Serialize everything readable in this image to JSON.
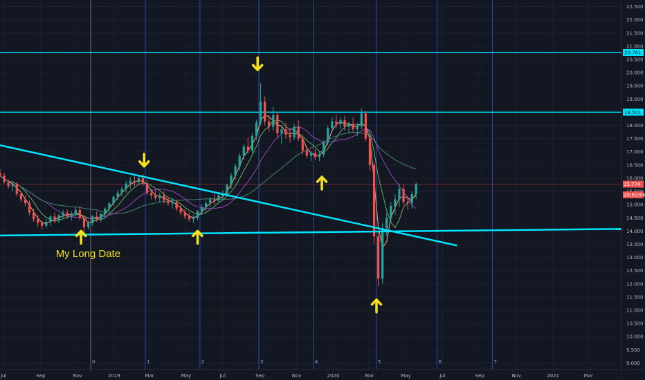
{
  "chart_data": {
    "type": "candlestick",
    "y_axis": {
      "range": [
        8.75,
        22.75
      ],
      "ticks": [
        "9.000",
        "9.500",
        "10.000",
        "10.500",
        "11.000",
        "11.500",
        "12.000",
        "12.500",
        "13.000",
        "13.500",
        "14.000",
        "14.500",
        "15.000",
        "15.500",
        "16.000",
        "16.500",
        "17.000",
        "17.500",
        "18.000",
        "18.500",
        "19.000",
        "19.500",
        "20.000",
        "20.500",
        "21.000",
        "21.500",
        "22.000",
        "22.500"
      ]
    },
    "x_axis": {
      "labels": [
        "Jul",
        "Sep",
        "Nov",
        "2019",
        "Mar",
        "May",
        "Jul",
        "Sep",
        "Nov",
        "2020",
        "Mar",
        "May",
        "Jul",
        "Sep",
        "Nov",
        "2021",
        "Mar"
      ],
      "label_dates": [
        "2018-07",
        "2018-09",
        "2018-11",
        "2019-01",
        "2019-03",
        "2019-05",
        "2019-07",
        "2019-09",
        "2019-11",
        "2020-01",
        "2020-03",
        "2020-05",
        "2020-07",
        "2020-09",
        "2020-11",
        "2021-01",
        "2021-03"
      ],
      "range": [
        "2018-06-25",
        "2021-04-25"
      ]
    },
    "cycle_markers": [
      {
        "label": "0",
        "date": "2018-11-23"
      },
      {
        "label": "1",
        "date": "2019-02-22"
      },
      {
        "label": "2",
        "date": "2019-05-24"
      },
      {
        "label": "3",
        "date": "2019-08-30"
      },
      {
        "label": "4",
        "date": "2019-11-29"
      },
      {
        "label": "5",
        "date": "2020-03-13"
      },
      {
        "label": "6",
        "date": "2020-06-22"
      },
      {
        "label": "7",
        "date": "2020-09-22"
      }
    ],
    "horizontal_levels": [
      {
        "value": 20.761,
        "label": "20.761",
        "color": "#00e5ff"
      },
      {
        "value": 18.501,
        "label": "18.501",
        "color": "#00e5ff"
      }
    ],
    "price_tags": [
      {
        "value": 15.774,
        "label": "15.774",
        "color": "#ef5350"
      },
      {
        "value": 15.37,
        "label": "20:50:54",
        "color": "#ef5350"
      }
    ],
    "trendlines": [
      {
        "from": {
          "date": "2018-06-25",
          "value": 17.25
        },
        "to": {
          "date": "2020-07-25",
          "value": 13.45
        },
        "color": "#00e5ff"
      },
      {
        "from": {
          "date": "2018-06-25",
          "value": 13.83
        },
        "to": {
          "date": "2021-04-25",
          "value": 14.08
        },
        "color": "#00e5ff"
      }
    ],
    "annotations": [
      {
        "text": "My Long Date",
        "date": "2018-09-26",
        "value": 13.02,
        "color": "#f7e21d"
      }
    ],
    "arrows": [
      {
        "date": "2018-11-07",
        "value": 14.0,
        "direction": "up"
      },
      {
        "date": "2019-02-20",
        "value": 16.45,
        "direction": "down"
      },
      {
        "date": "2019-05-20",
        "value": 14.0,
        "direction": "up"
      },
      {
        "date": "2019-08-28",
        "value": 20.1,
        "direction": "down"
      },
      {
        "date": "2019-12-13",
        "value": 16.05,
        "direction": "up"
      },
      {
        "date": "2020-03-13",
        "value": 11.4,
        "direction": "up"
      }
    ],
    "ohlc_weekly": [
      [
        "2018-06-25",
        16.2,
        16.35,
        16.05,
        16.1
      ],
      [
        "2018-07-02",
        16.1,
        16.2,
        15.8,
        15.85
      ],
      [
        "2018-07-09",
        15.85,
        15.95,
        15.6,
        15.7
      ],
      [
        "2018-07-16",
        15.7,
        15.9,
        15.5,
        15.8
      ],
      [
        "2018-07-23",
        15.8,
        15.85,
        15.3,
        15.4
      ],
      [
        "2018-07-30",
        15.4,
        15.5,
        15.1,
        15.2
      ],
      [
        "2018-08-06",
        15.2,
        15.35,
        14.95,
        15.05
      ],
      [
        "2018-08-13",
        15.05,
        15.15,
        14.6,
        14.7
      ],
      [
        "2018-08-20",
        14.7,
        14.85,
        14.35,
        14.45
      ],
      [
        "2018-08-27",
        14.45,
        14.6,
        14.15,
        14.3
      ],
      [
        "2018-09-03",
        14.3,
        14.4,
        14.05,
        14.2
      ],
      [
        "2018-09-10",
        14.2,
        14.45,
        14.1,
        14.35
      ],
      [
        "2018-09-17",
        14.35,
        14.6,
        14.2,
        14.55
      ],
      [
        "2018-09-24",
        14.55,
        14.7,
        14.3,
        14.4
      ],
      [
        "2018-10-01",
        14.4,
        14.65,
        14.3,
        14.6
      ],
      [
        "2018-10-08",
        14.6,
        14.8,
        14.45,
        14.7
      ],
      [
        "2018-10-15",
        14.7,
        14.8,
        14.45,
        14.55
      ],
      [
        "2018-10-22",
        14.55,
        14.75,
        14.4,
        14.65
      ],
      [
        "2018-10-29",
        14.65,
        14.9,
        14.55,
        14.8
      ],
      [
        "2018-11-05",
        14.8,
        14.95,
        14.4,
        14.5
      ],
      [
        "2018-11-12",
        14.5,
        14.6,
        13.95,
        14.15
      ],
      [
        "2018-11-19",
        14.15,
        14.4,
        14.05,
        14.3
      ],
      [
        "2018-11-26",
        14.3,
        14.6,
        14.2,
        14.55
      ],
      [
        "2018-12-03",
        14.55,
        14.75,
        14.35,
        14.45
      ],
      [
        "2018-12-10",
        14.45,
        14.7,
        14.35,
        14.65
      ],
      [
        "2018-12-17",
        14.65,
        14.9,
        14.5,
        14.85
      ],
      [
        "2018-12-24",
        14.85,
        15.1,
        14.7,
        15.05
      ],
      [
        "2018-12-31",
        15.05,
        15.35,
        14.95,
        15.3
      ],
      [
        "2019-01-07",
        15.3,
        15.55,
        15.15,
        15.45
      ],
      [
        "2019-01-14",
        15.45,
        15.7,
        15.3,
        15.6
      ],
      [
        "2019-01-21",
        15.6,
        15.9,
        15.45,
        15.8
      ],
      [
        "2019-01-28",
        15.8,
        16.05,
        15.6,
        15.9
      ],
      [
        "2019-02-04",
        15.9,
        16.1,
        15.7,
        15.85
      ],
      [
        "2019-02-11",
        15.85,
        16.1,
        15.75,
        16.0
      ],
      [
        "2019-02-18",
        16.0,
        16.15,
        15.7,
        15.8
      ],
      [
        "2019-02-25",
        15.8,
        15.95,
        15.35,
        15.45
      ],
      [
        "2019-03-04",
        15.45,
        15.6,
        15.2,
        15.35
      ],
      [
        "2019-03-11",
        15.35,
        15.55,
        15.15,
        15.25
      ],
      [
        "2019-03-18",
        15.25,
        15.45,
        15.1,
        15.35
      ],
      [
        "2019-03-25",
        15.35,
        15.5,
        15.05,
        15.15
      ],
      [
        "2019-04-01",
        15.15,
        15.3,
        14.95,
        15.05
      ],
      [
        "2019-04-08",
        15.05,
        15.25,
        14.85,
        15.1
      ],
      [
        "2019-04-15",
        15.1,
        15.2,
        14.75,
        14.85
      ],
      [
        "2019-04-22",
        14.85,
        15.0,
        14.6,
        14.7
      ],
      [
        "2019-04-29",
        14.7,
        14.85,
        14.45,
        14.55
      ],
      [
        "2019-05-06",
        14.55,
        14.7,
        14.35,
        14.45
      ],
      [
        "2019-05-13",
        14.45,
        14.6,
        14.3,
        14.5
      ],
      [
        "2019-05-20",
        14.5,
        14.8,
        14.4,
        14.75
      ],
      [
        "2019-05-27",
        14.75,
        15.0,
        14.6,
        14.9
      ],
      [
        "2019-06-03",
        14.9,
        15.15,
        14.75,
        15.05
      ],
      [
        "2019-06-10",
        15.05,
        15.3,
        14.9,
        15.2
      ],
      [
        "2019-06-17",
        15.2,
        15.4,
        15.0,
        15.15
      ],
      [
        "2019-06-24",
        15.15,
        15.45,
        15.05,
        15.35
      ],
      [
        "2019-07-01",
        15.35,
        15.55,
        15.15,
        15.4
      ],
      [
        "2019-07-08",
        15.4,
        15.8,
        15.3,
        15.75
      ],
      [
        "2019-07-15",
        15.75,
        16.2,
        15.6,
        16.1
      ],
      [
        "2019-07-22",
        16.1,
        16.55,
        15.95,
        16.45
      ],
      [
        "2019-07-29",
        16.45,
        16.95,
        16.3,
        16.85
      ],
      [
        "2019-08-05",
        16.85,
        17.3,
        16.7,
        17.2
      ],
      [
        "2019-08-12",
        17.2,
        17.55,
        16.95,
        17.05
      ],
      [
        "2019-08-19",
        17.05,
        17.7,
        16.95,
        17.6
      ],
      [
        "2019-08-26",
        17.6,
        18.2,
        17.45,
        18.1
      ],
      [
        "2019-09-02",
        18.1,
        19.6,
        18.0,
        18.9
      ],
      [
        "2019-09-09",
        18.9,
        19.1,
        18.0,
        18.15
      ],
      [
        "2019-09-16",
        18.15,
        18.4,
        17.75,
        17.95
      ],
      [
        "2019-09-23",
        17.95,
        18.7,
        17.8,
        18.4
      ],
      [
        "2019-09-30",
        18.4,
        18.5,
        17.55,
        17.7
      ],
      [
        "2019-10-07",
        17.7,
        18.0,
        17.3,
        17.85
      ],
      [
        "2019-10-14",
        17.85,
        18.1,
        17.5,
        17.65
      ],
      [
        "2019-10-21",
        17.65,
        17.9,
        17.35,
        17.55
      ],
      [
        "2019-10-28",
        17.55,
        18.05,
        17.45,
        17.95
      ],
      [
        "2019-11-04",
        17.95,
        18.2,
        17.4,
        17.5
      ],
      [
        "2019-11-11",
        17.5,
        17.6,
        16.9,
        17.05
      ],
      [
        "2019-11-18",
        17.05,
        17.2,
        16.75,
        16.85
      ],
      [
        "2019-11-25",
        16.85,
        17.05,
        16.65,
        16.95
      ],
      [
        "2019-12-02",
        16.95,
        17.1,
        16.7,
        16.8
      ],
      [
        "2019-12-09",
        16.8,
        17.0,
        16.65,
        16.9
      ],
      [
        "2019-12-16",
        16.9,
        17.45,
        16.8,
        17.35
      ],
      [
        "2019-12-23",
        17.35,
        18.0,
        17.25,
        17.9
      ],
      [
        "2019-12-30",
        17.9,
        18.3,
        17.75,
        18.15
      ],
      [
        "2020-01-06",
        18.15,
        18.4,
        17.9,
        18.05
      ],
      [
        "2020-01-13",
        18.05,
        18.3,
        17.85,
        18.2
      ],
      [
        "2020-01-20",
        18.2,
        18.35,
        17.8,
        17.95
      ],
      [
        "2020-01-27",
        17.95,
        18.15,
        17.7,
        18.05
      ],
      [
        "2020-02-03",
        18.05,
        18.3,
        17.75,
        17.85
      ],
      [
        "2020-02-10",
        17.85,
        18.1,
        17.6,
        17.95
      ],
      [
        "2020-02-17",
        17.95,
        18.65,
        17.85,
        18.45
      ],
      [
        "2020-02-24",
        18.45,
        18.55,
        17.4,
        17.5
      ],
      [
        "2020-03-02",
        17.5,
        17.6,
        16.3,
        16.5
      ],
      [
        "2020-03-09",
        16.5,
        16.6,
        13.5,
        13.8
      ],
      [
        "2020-03-16",
        13.8,
        14.0,
        11.9,
        12.2
      ],
      [
        "2020-03-23",
        12.2,
        14.3,
        12.0,
        14.1
      ],
      [
        "2020-03-30",
        14.1,
        14.7,
        13.8,
        14.5
      ],
      [
        "2020-04-06",
        14.5,
        15.1,
        14.3,
        14.95
      ],
      [
        "2020-04-13",
        14.95,
        15.4,
        14.6,
        15.2
      ],
      [
        "2020-04-20",
        15.2,
        15.8,
        14.9,
        15.6
      ],
      [
        "2020-04-27",
        15.6,
        15.75,
        15.0,
        15.1
      ],
      [
        "2020-05-04",
        15.1,
        15.35,
        14.8,
        15.05
      ],
      [
        "2020-05-11",
        15.05,
        15.5,
        14.85,
        15.4
      ],
      [
        "2020-05-18",
        15.4,
        15.85,
        15.2,
        15.77
      ]
    ]
  }
}
